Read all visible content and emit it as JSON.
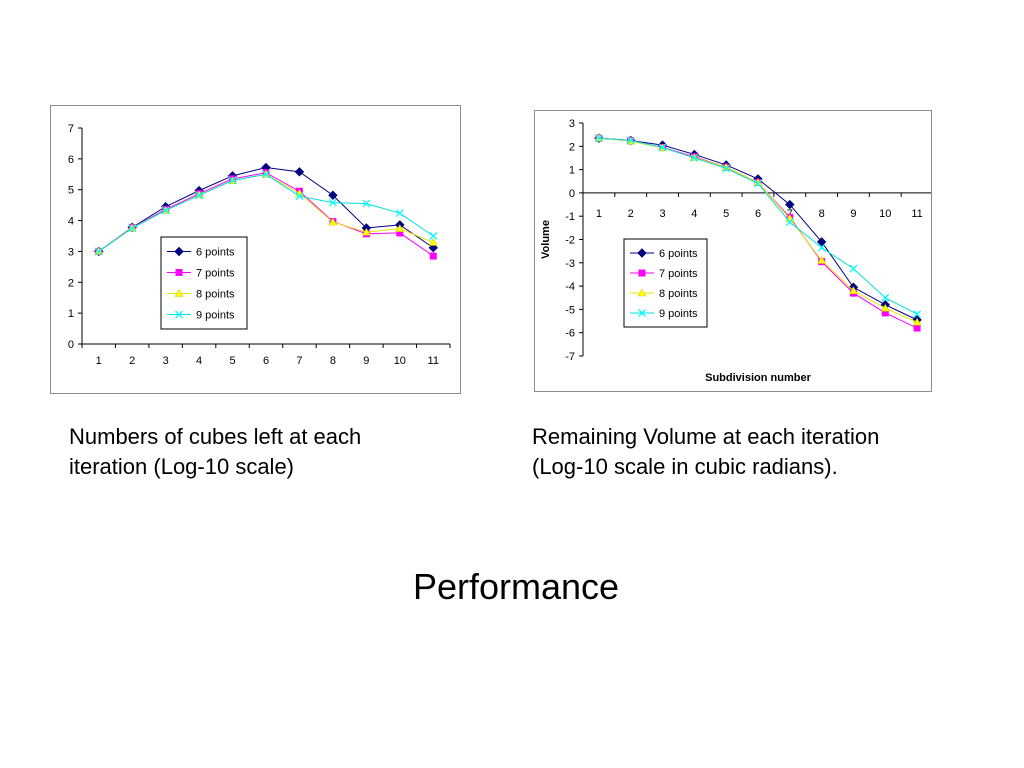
{
  "captions": {
    "left_line1": "Numbers of cubes left at each",
    "left_line2": "iteration (Log-10 scale)",
    "right_line1": "Remaining Volume at each iteration",
    "right_line2": "(Log-10 scale in cubic radians)."
  },
  "page_title": "Performance",
  "colors": {
    "6 points": "#000080",
    "7 points": "#ff00ff",
    "8 points": "#ffff00",
    "9 points": "#00ffff"
  },
  "chart_data": [
    {
      "type": "line",
      "title": "",
      "xlabel": "",
      "ylabel": "",
      "categories": [
        "1",
        "2",
        "3",
        "4",
        "5",
        "6",
        "7",
        "8",
        "9",
        "10",
        "11"
      ],
      "ylim": [
        0,
        7
      ],
      "yticks": [
        "0",
        "1",
        "2",
        "3",
        "4",
        "5",
        "6",
        "7"
      ],
      "grid": false,
      "legend": "center",
      "series": [
        {
          "name": "6 points",
          "marker": "diamond",
          "values": [
            3.0,
            3.78,
            4.45,
            4.97,
            5.45,
            5.72,
            5.58,
            4.82,
            3.76,
            3.86,
            3.12
          ]
        },
        {
          "name": "7 points",
          "marker": "square",
          "values": [
            3.0,
            3.77,
            4.36,
            4.87,
            5.35,
            5.55,
            4.95,
            3.97,
            3.57,
            3.6,
            2.85
          ]
        },
        {
          "name": "8 points",
          "marker": "triangle",
          "values": [
            3.0,
            3.76,
            4.33,
            4.83,
            5.29,
            5.5,
            4.88,
            3.95,
            3.62,
            3.74,
            3.29
          ]
        },
        {
          "name": "9 points",
          "marker": "x",
          "values": [
            3.0,
            3.75,
            4.33,
            4.82,
            5.3,
            5.5,
            4.79,
            4.58,
            4.55,
            4.24,
            3.5
          ]
        }
      ]
    },
    {
      "type": "line",
      "title": "",
      "xlabel": "Subdivision number",
      "ylabel": "Volume",
      "categories": [
        "1",
        "2",
        "3",
        "4",
        "5",
        "6",
        "7",
        "8",
        "9",
        "10",
        "11"
      ],
      "ylim": [
        -7,
        3
      ],
      "yticks": [
        "-7",
        "-6",
        "-5",
        "-4",
        "-3",
        "-2",
        "-1",
        "0",
        "1",
        "2",
        "3"
      ],
      "grid": false,
      "legend": "lower-left",
      "series": [
        {
          "name": "6 points",
          "marker": "diamond",
          "values": [
            2.35,
            2.25,
            2.05,
            1.65,
            1.2,
            0.6,
            -0.5,
            -2.1,
            -4.05,
            -4.8,
            -5.45
          ]
        },
        {
          "name": "7 points",
          "marker": "square",
          "values": [
            2.35,
            2.25,
            1.95,
            1.55,
            1.1,
            0.45,
            -1.05,
            -2.95,
            -4.3,
            -5.15,
            -5.8
          ]
        },
        {
          "name": "8 points",
          "marker": "triangle",
          "values": [
            2.35,
            2.22,
            1.93,
            1.52,
            1.1,
            0.45,
            -1.1,
            -2.9,
            -4.2,
            -4.95,
            -5.55
          ]
        },
        {
          "name": "9 points",
          "marker": "x",
          "values": [
            2.35,
            2.25,
            1.95,
            1.5,
            1.05,
            0.4,
            -1.25,
            -2.35,
            -3.25,
            -4.5,
            -5.2
          ]
        }
      ]
    }
  ]
}
